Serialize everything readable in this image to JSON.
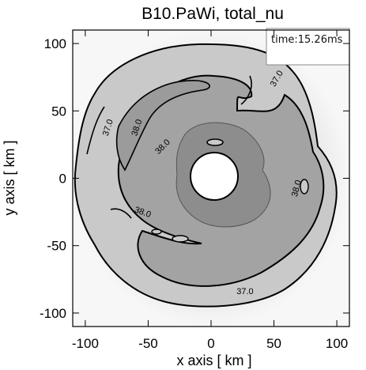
{
  "chart_data": {
    "type": "heatmap",
    "title": "B10.PaWi, total_nu",
    "xlabel": "x axis [ km ]",
    "ylabel": "y axis [ km ]",
    "xlim": [
      -110,
      110
    ],
    "ylim": [
      -110,
      110
    ],
    "xticks": [
      -100,
      -50,
      0,
      50,
      100
    ],
    "yticks": [
      -100,
      -50,
      0,
      50,
      100
    ],
    "time_label": "time:15.26ms",
    "contour_levels": [
      "37.0",
      "38.0"
    ],
    "contour_labels": [
      {
        "text": "37.0",
        "x": 54,
        "y": 73,
        "rotate": -60
      },
      {
        "text": "37.0",
        "x": -80,
        "y": 37,
        "rotate": -72
      },
      {
        "text": "38.0",
        "x": -57,
        "y": 37,
        "rotate": -72
      },
      {
        "text": "38.0",
        "x": -37,
        "y": 22,
        "rotate": -45
      },
      {
        "text": "38.0",
        "x": -55,
        "y": -27,
        "rotate": 20
      },
      {
        "text": "38.0",
        "x": 70,
        "y": -8,
        "rotate": -75
      },
      {
        "text": "37.0",
        "x": 27,
        "y": -86,
        "rotate": 0
      }
    ],
    "colors": {
      "background": "#eeeeee",
      "outer_disk": "#c9c9c9",
      "mid_region": "#9e9e9e",
      "inner_region": "#8a8a8a",
      "hole": "#ffffff",
      "contour": "#000000"
    }
  }
}
